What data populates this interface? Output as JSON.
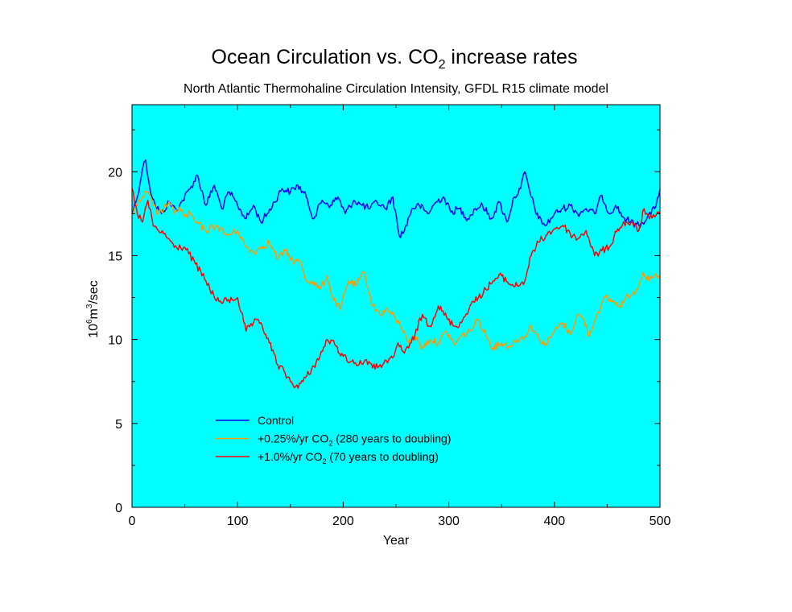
{
  "chart_data": {
    "type": "line",
    "title_main": "Ocean Circulation vs. CO",
    "title_sub": "2",
    "title_tail": " increase rates",
    "subtitle": "North Atlantic Thermohaline Circulation Intensity, GFDL R15 climate model",
    "xlabel": "Year",
    "ylabel_base": "10",
    "ylabel_exp1": "6",
    "ylabel_unit": "m",
    "ylabel_exp2": "3",
    "ylabel_tail": "/sec",
    "xlim": [
      0,
      500
    ],
    "ylim": [
      0,
      24
    ],
    "xticks": [
      0,
      100,
      200,
      300,
      400,
      500
    ],
    "xtick_labels": [
      "0",
      "100",
      "200",
      "300",
      "400",
      "500"
    ],
    "yticks": [
      0,
      5,
      10,
      15,
      20
    ],
    "ytick_labels": [
      "0",
      "5",
      "10",
      "15",
      "20"
    ],
    "background": "#00ffff",
    "grid": false,
    "legend_position": "lower-left",
    "series": [
      {
        "name": "Control",
        "legend_parts": [
          "Control"
        ],
        "color": "#0000ff",
        "x": [
          0,
          5,
          10,
          13,
          17,
          22,
          28,
          35,
          42,
          48,
          55,
          62,
          70,
          78,
          85,
          92,
          100,
          108,
          115,
          122,
          128,
          135,
          142,
          150,
          157,
          165,
          172,
          180,
          188,
          195,
          202,
          210,
          218,
          225,
          232,
          240,
          247,
          253,
          258,
          265,
          272,
          280,
          288,
          295,
          302,
          310,
          318,
          325,
          332,
          340,
          348,
          355,
          362,
          368,
          372,
          378,
          385,
          392,
          400,
          408,
          415,
          422,
          430,
          438,
          445,
          452,
          458,
          465,
          472,
          480,
          488,
          495,
          500
        ],
        "y": [
          17.5,
          18.5,
          20.2,
          20.7,
          19.0,
          18.0,
          17.5,
          18.2,
          17.7,
          18.3,
          19.0,
          19.8,
          18.0,
          19.2,
          17.8,
          18.8,
          18.0,
          17.2,
          18.0,
          17.0,
          17.5,
          18.2,
          19.0,
          18.8,
          19.2,
          18.5,
          17.2,
          18.3,
          18.0,
          18.5,
          17.5,
          18.3,
          18.0,
          17.8,
          18.2,
          17.8,
          18.5,
          16.2,
          16.5,
          17.8,
          18.0,
          17.5,
          18.2,
          18.5,
          17.6,
          17.8,
          17.2,
          17.8,
          18.0,
          17.2,
          18.2,
          17.0,
          18.5,
          19.0,
          20.0,
          18.5,
          17.2,
          16.8,
          17.5,
          17.8,
          18.0,
          17.5,
          17.8,
          17.5,
          18.6,
          17.5,
          18.0,
          17.3,
          17.0,
          16.8,
          17.3,
          17.8,
          19.0
        ]
      },
      {
        "name": "+0.25%/yr CO2 (280 years to doubling)",
        "legend_parts": [
          "+0.25%/yr CO",
          "2",
          " (280 years to doubling)"
        ],
        "color": "#ff9900",
        "x": [
          0,
          5,
          10,
          15,
          20,
          25,
          30,
          35,
          40,
          45,
          50,
          55,
          60,
          70,
          80,
          90,
          100,
          108,
          115,
          122,
          130,
          138,
          145,
          152,
          160,
          165,
          170,
          178,
          185,
          190,
          197,
          205,
          212,
          220,
          228,
          235,
          242,
          250,
          258,
          262,
          268,
          275,
          282,
          290,
          298,
          305,
          312,
          320,
          328,
          335,
          342,
          350,
          358,
          365,
          372,
          378,
          385,
          392,
          400,
          408,
          415,
          422,
          428,
          433,
          440,
          448,
          455,
          462,
          470,
          478,
          484,
          490,
          495,
          500
        ],
        "y": [
          17.5,
          18.0,
          18.5,
          18.8,
          18.0,
          17.5,
          17.8,
          18.2,
          17.5,
          17.9,
          17.3,
          17.5,
          17.0,
          16.5,
          16.8,
          16.2,
          16.5,
          15.5,
          15.2,
          15.5,
          15.8,
          14.8,
          15.3,
          14.7,
          14.6,
          13.5,
          13.5,
          13.0,
          13.8,
          12.5,
          11.8,
          13.5,
          13.2,
          14.0,
          12.0,
          11.5,
          11.8,
          11.2,
          10.5,
          9.8,
          10.2,
          9.5,
          10.0,
          9.8,
          10.5,
          9.7,
          10.2,
          10.5,
          11.2,
          10.3,
          9.5,
          9.8,
          9.6,
          10.0,
          10.2,
          10.8,
          10.1,
          9.7,
          10.5,
          11.0,
          10.3,
          11.5,
          11.2,
          10.2,
          11.5,
          12.5,
          12.3,
          12.0,
          12.6,
          13.0,
          14.0,
          13.5,
          13.8,
          13.6
        ]
      },
      {
        "name": "+1.0%/yr CO2 (70 years to doubling)",
        "legend_parts": [
          "+1.0%/yr CO",
          "2",
          " (70 years to doubling)"
        ],
        "color": "#ff0000",
        "x": [
          0,
          5,
          10,
          15,
          20,
          25,
          30,
          35,
          40,
          50,
          60,
          70,
          80,
          90,
          100,
          108,
          115,
          122,
          130,
          138,
          145,
          150,
          155,
          162,
          170,
          178,
          185,
          192,
          200,
          208,
          215,
          222,
          228,
          235,
          242,
          248,
          252,
          258,
          262,
          268,
          275,
          282,
          290,
          298,
          305,
          312,
          320,
          328,
          335,
          342,
          350,
          358,
          365,
          372,
          378,
          385,
          392,
          400,
          408,
          415,
          422,
          430,
          438,
          445,
          452,
          460,
          468,
          475,
          480,
          485,
          490,
          495,
          500
        ],
        "y": [
          19.0,
          17.5,
          17.0,
          18.3,
          16.8,
          16.5,
          16.3,
          16.0,
          15.5,
          15.5,
          14.5,
          13.5,
          12.3,
          12.3,
          12.5,
          10.5,
          11.0,
          11.0,
          9.8,
          8.5,
          8.0,
          7.5,
          7.2,
          7.5,
          8.2,
          9.0,
          10.0,
          9.7,
          9.0,
          8.7,
          8.5,
          8.8,
          8.3,
          8.5,
          8.6,
          9.0,
          9.8,
          9.2,
          9.5,
          10.3,
          11.5,
          10.8,
          12.0,
          11.3,
          10.8,
          11.0,
          12.0,
          12.5,
          13.0,
          13.5,
          13.8,
          13.3,
          13.2,
          13.5,
          15.0,
          15.8,
          16.2,
          16.6,
          16.8,
          16.3,
          16.0,
          16.5,
          15.0,
          15.3,
          15.5,
          16.6,
          17.0,
          16.8,
          16.5,
          17.8,
          17.2,
          17.3,
          17.5
        ]
      }
    ]
  }
}
